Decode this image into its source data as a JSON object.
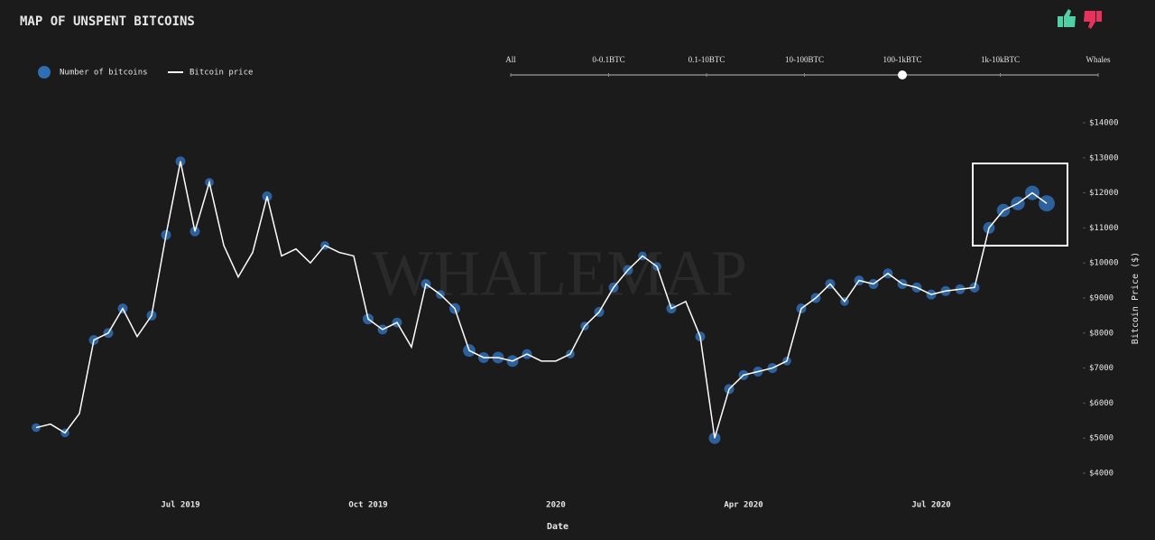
{
  "title": "MAP OF UNSPENT BITCOINS",
  "slider": {
    "options": [
      "All",
      "0-0.1BTC",
      "0.1-10BTC",
      "10-100BTC",
      "100-1kBTC",
      "1k-10kBTC",
      "Whales"
    ],
    "selected": 4
  },
  "watermark": "WHALEMAP",
  "chart_data": {
    "type": "line",
    "x_label": "Date",
    "y_label": "Bitcoin Price ($)",
    "categories": [
      null,
      null,
      null,
      null,
      null,
      null,
      null,
      null,
      null,
      null,
      "Jul 2019",
      null,
      null,
      null,
      null,
      null,
      null,
      null,
      null,
      null,
      null,
      null,
      null,
      "Oct 2019",
      null,
      null,
      null,
      null,
      null,
      null,
      null,
      null,
      null,
      null,
      null,
      null,
      "2020",
      null,
      null,
      null,
      null,
      null,
      null,
      null,
      null,
      null,
      null,
      null,
      null,
      "Apr 2020",
      null,
      null,
      null,
      null,
      null,
      null,
      null,
      null,
      null,
      null,
      null,
      null,
      "Jul 2020",
      null,
      null,
      null,
      null,
      null,
      null,
      null,
      null
    ],
    "series": [
      {
        "name": "Bitcoin price",
        "color": "#ffffff",
        "values": [
          5300,
          5400,
          5150,
          5700,
          7800,
          8000,
          8700,
          7900,
          8500,
          10800,
          12900,
          10900,
          12300,
          10500,
          9600,
          10300,
          11900,
          10200,
          10400,
          10000,
          10500,
          10300,
          10200,
          8400,
          8100,
          8300,
          7600,
          9400,
          9100,
          8700,
          7500,
          7300,
          7300,
          7200,
          7400,
          7200,
          7200,
          7400,
          8200,
          8600,
          9300,
          9800,
          10200,
          9900,
          8700,
          8900,
          7900,
          5000,
          6400,
          6800,
          6900,
          7000,
          7200,
          8700,
          9000,
          9400,
          8900,
          9500,
          9400,
          9700,
          9400,
          9300,
          9100,
          9200,
          9250,
          9300,
          11000,
          11500,
          11700,
          12000,
          11700
        ]
      },
      {
        "name": "Number of bitcoins",
        "color": "#2f6db5",
        "values": [
          2,
          null,
          2,
          null,
          3,
          3,
          3,
          null,
          3,
          3,
          3,
          3,
          2,
          null,
          null,
          null,
          3,
          null,
          null,
          null,
          2,
          null,
          null,
          4,
          3,
          3,
          null,
          3,
          2,
          4,
          6,
          4,
          5,
          5,
          3,
          null,
          null,
          2,
          2,
          3,
          3,
          3,
          2,
          2,
          3,
          null,
          3,
          5,
          3,
          3,
          3,
          3,
          2,
          3,
          3,
          3,
          2,
          3,
          3,
          3,
          3,
          3,
          3,
          3,
          3,
          3,
          5,
          7,
          8,
          9,
          12
        ]
      }
    ],
    "ylim": [
      4000,
      14000
    ],
    "yticks": [
      {
        "value": 4000,
        "label": "$4000"
      },
      {
        "value": 5000,
        "label": "$5000"
      },
      {
        "value": 6000,
        "label": "$6000"
      },
      {
        "value": 7000,
        "label": "$7000"
      },
      {
        "value": 8000,
        "label": "$8000"
      },
      {
        "value": 9000,
        "label": "$9000"
      },
      {
        "value": 10000,
        "label": "$10000"
      },
      {
        "value": 11000,
        "label": "$11000"
      },
      {
        "value": 12000,
        "label": "$12000"
      },
      {
        "value": 13000,
        "label": "$13000"
      },
      {
        "value": 14000,
        "label": "$14000"
      }
    ]
  }
}
